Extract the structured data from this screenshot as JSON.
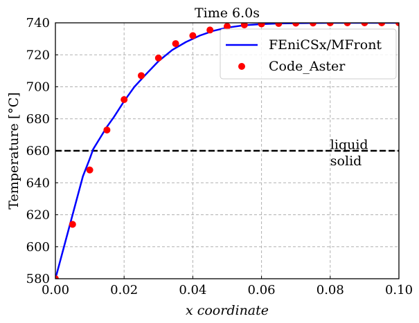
{
  "chart_data": {
    "type": "line",
    "title": "Time 6.0s",
    "xlabel": "x coordinate",
    "ylabel": "Temperature [°C]",
    "xlim": [
      0.0,
      0.1
    ],
    "ylim": [
      580,
      740
    ],
    "xticks": [
      "0.00",
      "0.02",
      "0.04",
      "0.06",
      "0.08",
      "0.10"
    ],
    "yticks": [
      "580",
      "600",
      "620",
      "640",
      "660",
      "680",
      "700",
      "720",
      "740"
    ],
    "grid": true,
    "legend_position": "top-right",
    "series": [
      {
        "name": "FEniCSx/MFront",
        "style": "line",
        "color": "#0000ff",
        "x": [
          0.0,
          0.002,
          0.004,
          0.006,
          0.008,
          0.01,
          0.011,
          0.013,
          0.015,
          0.017,
          0.02,
          0.023,
          0.026,
          0.03,
          0.034,
          0.038,
          0.042,
          0.046,
          0.05,
          0.055,
          0.06,
          0.065,
          0.07,
          0.075,
          0.08,
          0.085,
          0.09,
          0.095,
          0.1
        ],
        "y": [
          580,
          596,
          612,
          628,
          644,
          655,
          661,
          668,
          675,
          681,
          691,
          700,
          707,
          716,
          723,
          728,
          732,
          735,
          737,
          738.5,
          739.2,
          739.6,
          739.8,
          739.9,
          740,
          740,
          740,
          740,
          740
        ]
      },
      {
        "name": "Code_Aster",
        "style": "markers",
        "color": "#ff0000",
        "x": [
          0.0,
          0.005,
          0.01,
          0.015,
          0.02,
          0.025,
          0.03,
          0.035,
          0.04,
          0.045,
          0.05,
          0.055,
          0.06,
          0.065,
          0.07,
          0.075,
          0.08,
          0.085,
          0.09,
          0.095,
          0.1
        ],
        "y": [
          580,
          614,
          648,
          673,
          692,
          707,
          718,
          727,
          732,
          735.5,
          737.8,
          738.7,
          739.3,
          739.6,
          739.8,
          739.9,
          740,
          740,
          740,
          740,
          740
        ]
      }
    ],
    "reference_line": {
      "y": 660,
      "color": "#000000",
      "style": "dashed"
    },
    "annotations": [
      {
        "text": "liquid",
        "x": 0.08,
        "y": 661
      },
      {
        "text": "solid",
        "x": 0.08,
        "y": 651
      }
    ]
  }
}
